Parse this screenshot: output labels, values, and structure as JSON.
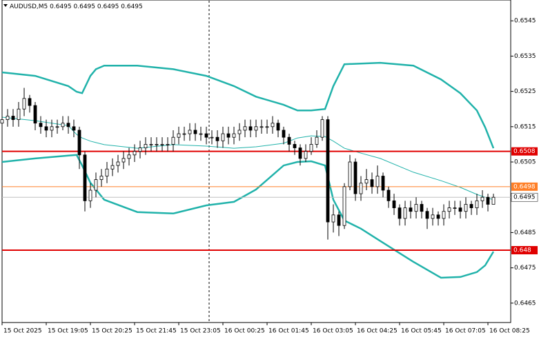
{
  "chart_data": {
    "type": "candlestick",
    "title": "AUDUSD,M5",
    "header_values": [
      0.6495,
      0.6495,
      0.6495,
      0.6495
    ],
    "candle_color": "#000000",
    "up_fill": "#ffffff",
    "down_fill": "#000000",
    "x": [
      0,
      2,
      4,
      6,
      8,
      10,
      12,
      14,
      16,
      18,
      20,
      22,
      24,
      26,
      28,
      30,
      32,
      34,
      36,
      38,
      40,
      42,
      44,
      46,
      48,
      50,
      52,
      54,
      56,
      58,
      60,
      62,
      64,
      66,
      68,
      70,
      72,
      74,
      76,
      78,
      80,
      82,
      84,
      86,
      88,
      90,
      92,
      94,
      96,
      98,
      100,
      102,
      104,
      106,
      108,
      110,
      112,
      114,
      116,
      118,
      120,
      122,
      124,
      126,
      128,
      130,
      132,
      134,
      136,
      138,
      140,
      142,
      144,
      146,
      148,
      150,
      152,
      154,
      156,
      158,
      160,
      162,
      164,
      166,
      168,
      170,
      172,
      174,
      176,
      178
    ],
    "open": [
      0.6516,
      0.6517,
      0.6518,
      0.6517,
      0.652,
      0.6523,
      0.6521,
      0.6516,
      0.6515,
      0.6514,
      0.6515,
      0.6515,
      0.6516,
      0.6515,
      0.6514,
      0.6507,
      0.6494,
      0.6497,
      0.65,
      0.6501,
      0.6503,
      0.6504,
      0.6505,
      0.6506,
      0.6507,
      0.6508,
      0.6509,
      0.651,
      0.651,
      0.651,
      0.651,
      0.651,
      0.6512,
      0.6513,
      0.6513,
      0.6514,
      0.6513,
      0.6513,
      0.6512,
      0.6512,
      0.6511,
      0.6513,
      0.6512,
      0.6513,
      0.6514,
      0.6515,
      0.6514,
      0.6515,
      0.6515,
      0.6515,
      0.6516,
      0.6514,
      0.6512,
      0.651,
      0.6509,
      0.6506,
      0.6508,
      0.651,
      0.6512,
      0.6517,
      0.6488,
      0.649,
      0.6487,
      0.6498,
      0.6505,
      0.6496,
      0.6499,
      0.65,
      0.6498,
      0.6501,
      0.6497,
      0.6494,
      0.6492,
      0.6489,
      0.6492,
      0.6491,
      0.6493,
      0.6491,
      0.6489,
      0.649,
      0.6489,
      0.6491,
      0.6492,
      0.6492,
      0.6491,
      0.6493,
      0.6492,
      0.6494,
      0.6495,
      0.6493
    ],
    "high": [
      0.6519,
      0.652,
      0.652,
      0.6522,
      0.6526,
      0.6524,
      0.6522,
      0.6518,
      0.6517,
      0.6517,
      0.6517,
      0.6518,
      0.6518,
      0.6517,
      0.6515,
      0.6508,
      0.6499,
      0.6502,
      0.6503,
      0.6505,
      0.6506,
      0.6507,
      0.6508,
      0.6509,
      0.651,
      0.6511,
      0.6512,
      0.6512,
      0.6512,
      0.6512,
      0.6512,
      0.6514,
      0.6515,
      0.6515,
      0.6516,
      0.6516,
      0.6515,
      0.6515,
      0.6514,
      0.6514,
      0.6515,
      0.6515,
      0.6515,
      0.6516,
      0.6517,
      0.6517,
      0.6517,
      0.6517,
      0.6517,
      0.6518,
      0.6517,
      0.6515,
      0.6513,
      0.6511,
      0.651,
      0.651,
      0.6512,
      0.6514,
      0.6518,
      0.6518,
      0.6493,
      0.6491,
      0.6499,
      0.6507,
      0.6506,
      0.6501,
      0.6503,
      0.6502,
      0.6504,
      0.6502,
      0.6498,
      0.6496,
      0.6493,
      0.6494,
      0.6494,
      0.6495,
      0.6494,
      0.6492,
      0.6492,
      0.6491,
      0.6493,
      0.6494,
      0.6494,
      0.6494,
      0.6495,
      0.6494,
      0.6496,
      0.6497,
      0.6496,
      0.6496
    ],
    "low": [
      0.6514,
      0.6515,
      0.6515,
      0.6515,
      0.6518,
      0.6519,
      0.6514,
      0.6513,
      0.6512,
      0.6512,
      0.6513,
      0.6514,
      0.6513,
      0.6512,
      0.6503,
      0.6491,
      0.6492,
      0.6495,
      0.6498,
      0.6499,
      0.6501,
      0.6502,
      0.6503,
      0.6504,
      0.6505,
      0.6506,
      0.6507,
      0.6508,
      0.6508,
      0.6508,
      0.6508,
      0.6508,
      0.651,
      0.6511,
      0.6511,
      0.6511,
      0.6511,
      0.651,
      0.651,
      0.6509,
      0.6509,
      0.651,
      0.651,
      0.6511,
      0.6512,
      0.6512,
      0.6512,
      0.6513,
      0.6513,
      0.6513,
      0.6512,
      0.651,
      0.6508,
      0.6507,
      0.6504,
      0.6505,
      0.6507,
      0.6509,
      0.6511,
      0.6483,
      0.6485,
      0.6484,
      0.6486,
      0.6497,
      0.6494,
      0.6494,
      0.6497,
      0.6496,
      0.6496,
      0.6495,
      0.6492,
      0.649,
      0.6487,
      0.6487,
      0.6489,
      0.6489,
      0.6489,
      0.6486,
      0.6487,
      0.6487,
      0.6487,
      0.6489,
      0.649,
      0.6489,
      0.6489,
      0.649,
      0.649,
      0.6492,
      0.6491,
      0.6493
    ],
    "close": [
      0.6517,
      0.6518,
      0.6517,
      0.652,
      0.6523,
      0.6521,
      0.6516,
      0.6515,
      0.6514,
      0.6515,
      0.6515,
      0.6516,
      0.6515,
      0.6514,
      0.6507,
      0.6494,
      0.6497,
      0.65,
      0.6501,
      0.6503,
      0.6504,
      0.6505,
      0.6506,
      0.6507,
      0.6508,
      0.6509,
      0.651,
      0.651,
      0.651,
      0.651,
      0.651,
      0.6512,
      0.6513,
      0.6513,
      0.6514,
      0.6513,
      0.6513,
      0.6512,
      0.6512,
      0.6511,
      0.6513,
      0.6512,
      0.6513,
      0.6514,
      0.6515,
      0.6514,
      0.6515,
      0.6515,
      0.6515,
      0.6516,
      0.6514,
      0.6512,
      0.651,
      0.6509,
      0.6506,
      0.6508,
      0.651,
      0.6512,
      0.6517,
      0.6488,
      0.649,
      0.6487,
      0.6498,
      0.6505,
      0.6496,
      0.6499,
      0.65,
      0.6498,
      0.6501,
      0.6497,
      0.6494,
      0.6492,
      0.6489,
      0.6492,
      0.6491,
      0.6493,
      0.6491,
      0.6489,
      0.649,
      0.6489,
      0.6491,
      0.6492,
      0.6492,
      0.6491,
      0.6493,
      0.6492,
      0.6494,
      0.6495,
      0.6493,
      0.6495
    ],
    "bands": [
      {
        "color": "#20b2aa",
        "width": 2.5,
        "x": [
          0,
          12,
          24,
          27,
          29,
          32,
          34,
          37,
          49,
          62,
          74,
          84,
          92,
          102,
          107,
          112,
          117,
          120,
          124,
          130,
          137,
          149,
          159,
          166,
          172,
          175,
          178
        ],
        "values": [
          0.65304,
          0.65294,
          0.65265,
          0.65249,
          0.65245,
          0.65294,
          0.65313,
          0.65323,
          0.65323,
          0.65313,
          0.65294,
          0.65265,
          0.65235,
          0.65212,
          0.65196,
          0.65196,
          0.652,
          0.65265,
          0.65327,
          0.65329,
          0.65331,
          0.65323,
          0.65284,
          0.65245,
          0.65196,
          0.65148,
          0.65089
        ]
      },
      {
        "color": "#20b2aa",
        "width": 1,
        "x": [
          0,
          12,
          24,
          27,
          29,
          32,
          34,
          37,
          49,
          62,
          74,
          84,
          92,
          102,
          107,
          112,
          117,
          120,
          124,
          130,
          137,
          149,
          159,
          166,
          172,
          175,
          178
        ],
        "values": [
          0.65177,
          0.65167,
          0.65153,
          0.65128,
          0.65118,
          0.65109,
          0.65105,
          0.65099,
          0.65089,
          0.65099,
          0.65095,
          0.65089,
          0.65093,
          0.65103,
          0.65118,
          0.65124,
          0.65122,
          0.65109,
          0.65089,
          0.65075,
          0.6506,
          0.65021,
          0.64997,
          0.64978,
          0.64958,
          0.6495,
          0.64943
        ]
      },
      {
        "color": "#20b2aa",
        "width": 2.5,
        "x": [
          0,
          12,
          24,
          27,
          29,
          32,
          34,
          37,
          49,
          62,
          74,
          84,
          92,
          102,
          107,
          112,
          117,
          120,
          124,
          130,
          137,
          149,
          159,
          166,
          172,
          175,
          178
        ],
        "values": [
          0.6505,
          0.6506,
          0.65068,
          0.6507,
          0.6504,
          0.64991,
          0.64972,
          0.64943,
          0.64908,
          0.64904,
          0.64927,
          0.64937,
          0.64972,
          0.6504,
          0.6505,
          0.65052,
          0.6504,
          0.64943,
          0.64884,
          0.64861,
          0.64826,
          0.64767,
          0.64722,
          0.64724,
          0.64738,
          0.64757,
          0.64796
        ]
      }
    ],
    "levels": [
      {
        "value": 0.6508,
        "color": "#e00000",
        "width": 2
      },
      {
        "value": 0.6498,
        "color": "#ff7f27",
        "width": 1
      },
      {
        "value": 0.648,
        "color": "#e00000",
        "width": 2
      }
    ],
    "current_price": {
      "value": 0.6495,
      "color": "#c0c0c0"
    },
    "xlim": [
      0,
      184.25
    ],
    "xticks": [
      {
        "value": 0,
        "label": "15 Oct 2025"
      },
      {
        "value": 16,
        "label": "15 Oct 19:05"
      },
      {
        "value": 32,
        "label": "15 Oct 20:25"
      },
      {
        "value": 48,
        "label": "15 Oct 21:45"
      },
      {
        "value": 64,
        "label": "15 Oct 23:05"
      },
      {
        "value": 80,
        "label": "16 Oct 00:25"
      },
      {
        "value": 96,
        "label": "16 Oct 01:45"
      },
      {
        "value": 112,
        "label": "16 Oct 03:05"
      },
      {
        "value": 128,
        "label": "16 Oct 04:25"
      },
      {
        "value": 144,
        "label": "16 Oct 05:45"
      },
      {
        "value": 160,
        "label": "16 Oct 07:05"
      },
      {
        "value": 176,
        "label": "16 Oct 08:25"
      }
    ],
    "ylim": [
      0.64595,
      0.65509
    ],
    "yticks": [
      0.6545,
      0.6535,
      0.6525,
      0.6515,
      0.6505,
      0.6485,
      0.6475,
      0.6465
    ]
  }
}
